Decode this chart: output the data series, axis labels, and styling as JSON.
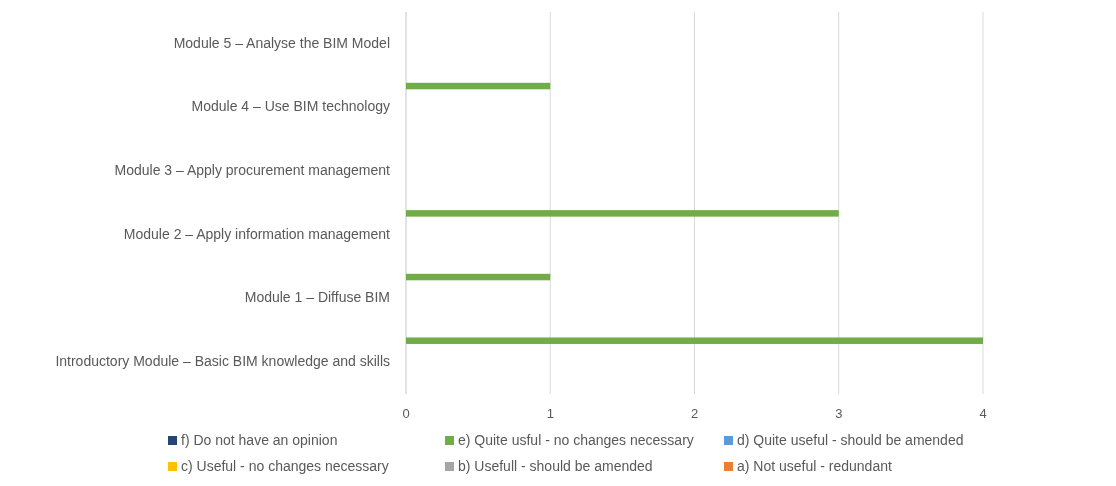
{
  "chart_data": {
    "type": "bar",
    "orientation": "horizontal",
    "categories": [
      "Module 5 – Analyse the BIM Model",
      "Module 4 – Use BIM technology",
      "Module 3 – Apply procurement management",
      "Module 2 – Apply information management",
      "Module 1 – Diffuse BIM",
      "Introductory Module – Basic BIM knowledge and skills"
    ],
    "series": [
      {
        "name": "f) Do not have an opinion",
        "color": "#264478",
        "values": [
          0,
          0,
          0,
          0,
          0,
          0
        ]
      },
      {
        "name": "e) Quite usful - no changes necessary",
        "color": "#70ad47",
        "values": [
          0,
          1,
          0,
          3,
          1,
          4
        ]
      },
      {
        "name": "d) Quite useful - should be amended",
        "color": "#5b9bd5",
        "values": [
          0,
          0,
          0,
          0,
          0,
          0
        ]
      },
      {
        "name": "c) Useful - no changes necessary",
        "color": "#ffc000",
        "values": [
          0,
          0,
          0,
          0,
          0,
          0
        ]
      },
      {
        "name": "b) Usefull - should be amended",
        "color": "#a5a5a5",
        "values": [
          0,
          0,
          0,
          0,
          0,
          0
        ]
      },
      {
        "name": "a) Not useful - redundant",
        "color": "#ed7d31",
        "values": [
          0,
          0,
          0,
          0,
          0,
          0
        ]
      }
    ],
    "xlim": [
      0,
      4
    ],
    "xticks": [
      0,
      1,
      2,
      3,
      4
    ],
    "grid": "x",
    "legend": "bottom"
  }
}
